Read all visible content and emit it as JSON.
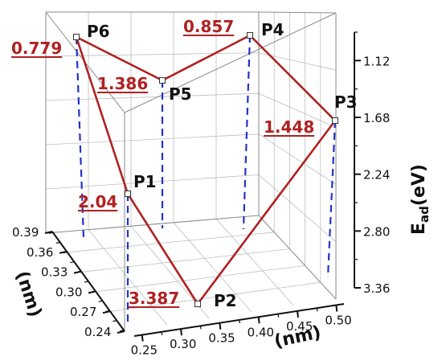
{
  "chart_data": {
    "type": "line3d",
    "axes": {
      "x": {
        "label": "(nm)",
        "ticks": [
          "0.25",
          "0.30",
          "0.35",
          "0.40",
          "0.45",
          "0.50"
        ],
        "range": [
          0.24,
          0.51
        ]
      },
      "y": {
        "label": "(nm)",
        "ticks": [
          "0.24",
          "0.27",
          "0.30",
          "0.33",
          "0.36",
          "0.39"
        ],
        "range": [
          0.24,
          0.39
        ]
      },
      "z": {
        "label": "E",
        "label_sub": "ad",
        "label_suffix": "(eV)",
        "ticks": [
          "1.12",
          "1.68",
          "2.24",
          "2.80",
          "3.36"
        ],
        "inverted": true
      }
    },
    "points": [
      {
        "name": "P1",
        "value": "2.04"
      },
      {
        "name": "P2",
        "value": "3.387"
      },
      {
        "name": "P3",
        "value": "1.448"
      },
      {
        "name": "P4",
        "value": "0.857"
      },
      {
        "name": "P5",
        "value": "1.386"
      },
      {
        "name": "P6",
        "value": "0.779"
      }
    ],
    "path_order": [
      "P6",
      "P1",
      "P2",
      "P3",
      "P4",
      "P5",
      "P6"
    ],
    "colors": {
      "path": "#b02121",
      "drop_lines": "#2233cc",
      "grid": "#bdbdbd",
      "axis": "#111111"
    }
  }
}
